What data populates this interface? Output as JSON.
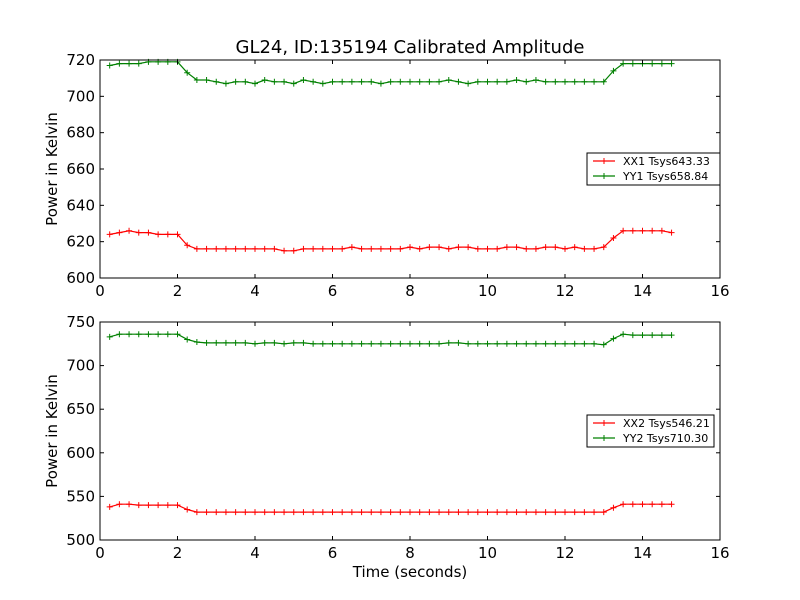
{
  "title": "GL24, ID:135194 Calibrated Amplitude",
  "chart_data": [
    {
      "type": "line",
      "ylabel": "Power in Kelvin",
      "xlabel": "",
      "xlim": [
        0,
        16
      ],
      "ylim": [
        600,
        720
      ],
      "xticks": [
        0,
        2,
        4,
        6,
        8,
        10,
        12,
        14,
        16
      ],
      "yticks": [
        600,
        620,
        640,
        660,
        680,
        700,
        720
      ],
      "grid": false,
      "legend_position": "center-right",
      "x": [
        0.25,
        0.5,
        0.75,
        1.0,
        1.25,
        1.5,
        1.75,
        2.0,
        2.25,
        2.5,
        2.75,
        3.0,
        3.25,
        3.5,
        3.75,
        4.0,
        4.25,
        4.5,
        4.75,
        5.0,
        5.25,
        5.5,
        5.75,
        6.0,
        6.25,
        6.5,
        6.75,
        7.0,
        7.25,
        7.5,
        7.75,
        8.0,
        8.25,
        8.5,
        8.75,
        9.0,
        9.25,
        9.5,
        9.75,
        10.0,
        10.25,
        10.5,
        10.75,
        11.0,
        11.25,
        11.5,
        11.75,
        12.0,
        12.25,
        12.5,
        12.75,
        13.0,
        13.25,
        13.5,
        13.75,
        14.0,
        14.25,
        14.5,
        14.75
      ],
      "series": [
        {
          "name": "XX1 Tsys643.33",
          "color": "#ff0000",
          "values": [
            624,
            625,
            626,
            625,
            625,
            624,
            624,
            624,
            618,
            616,
            616,
            616,
            616,
            616,
            616,
            616,
            616,
            616,
            615,
            615,
            616,
            616,
            616,
            616,
            616,
            617,
            616,
            616,
            616,
            616,
            616,
            617,
            616,
            617,
            617,
            616,
            617,
            617,
            616,
            616,
            616,
            617,
            617,
            616,
            616,
            617,
            617,
            616,
            617,
            616,
            616,
            617,
            622,
            626,
            626,
            626,
            626,
            626,
            625
          ]
        },
        {
          "name": "YY1 Tsys658.84",
          "color": "#008000",
          "values": [
            717,
            718,
            718,
            718,
            719,
            719,
            719,
            719,
            713,
            709,
            709,
            708,
            707,
            708,
            708,
            707,
            709,
            708,
            708,
            707,
            709,
            708,
            707,
            708,
            708,
            708,
            708,
            708,
            707,
            708,
            708,
            708,
            708,
            708,
            708,
            709,
            708,
            707,
            708,
            708,
            708,
            708,
            709,
            708,
            709,
            708,
            708,
            708,
            708,
            708,
            708,
            708,
            714,
            718,
            718,
            718,
            718,
            718,
            718
          ]
        }
      ]
    },
    {
      "type": "line",
      "ylabel": "Power in Kelvin",
      "xlabel": "Time (seconds)",
      "xlim": [
        0,
        16
      ],
      "ylim": [
        500,
        750
      ],
      "xticks": [
        0,
        2,
        4,
        6,
        8,
        10,
        12,
        14,
        16
      ],
      "yticks": [
        500,
        550,
        600,
        650,
        700,
        750
      ],
      "grid": false,
      "legend_position": "center-right",
      "x": [
        0.25,
        0.5,
        0.75,
        1.0,
        1.25,
        1.5,
        1.75,
        2.0,
        2.25,
        2.5,
        2.75,
        3.0,
        3.25,
        3.5,
        3.75,
        4.0,
        4.25,
        4.5,
        4.75,
        5.0,
        5.25,
        5.5,
        5.75,
        6.0,
        6.25,
        6.5,
        6.75,
        7.0,
        7.25,
        7.5,
        7.75,
        8.0,
        8.25,
        8.5,
        8.75,
        9.0,
        9.25,
        9.5,
        9.75,
        10.0,
        10.25,
        10.5,
        10.75,
        11.0,
        11.25,
        11.5,
        11.75,
        12.0,
        12.25,
        12.5,
        12.75,
        13.0,
        13.25,
        13.5,
        13.75,
        14.0,
        14.25,
        14.5,
        14.75
      ],
      "series": [
        {
          "name": "XX2 Tsys546.21",
          "color": "#ff0000",
          "values": [
            538,
            541,
            541,
            540,
            540,
            540,
            540,
            540,
            535,
            532,
            532,
            532,
            532,
            532,
            532,
            532,
            532,
            532,
            532,
            532,
            532,
            532,
            532,
            532,
            532,
            532,
            532,
            532,
            532,
            532,
            532,
            532,
            532,
            532,
            532,
            532,
            532,
            532,
            532,
            532,
            532,
            532,
            532,
            532,
            532,
            532,
            532,
            532,
            532,
            532,
            532,
            532,
            537,
            541,
            541,
            541,
            541,
            541,
            541
          ]
        },
        {
          "name": "YY2 Tsys710.30",
          "color": "#008000",
          "values": [
            733,
            736,
            736,
            736,
            736,
            736,
            736,
            736,
            730,
            727,
            726,
            726,
            726,
            726,
            726,
            725,
            726,
            726,
            725,
            726,
            726,
            725,
            725,
            725,
            725,
            725,
            725,
            725,
            725,
            725,
            725,
            725,
            725,
            725,
            725,
            726,
            726,
            725,
            725,
            725,
            725,
            725,
            725,
            725,
            725,
            725,
            725,
            725,
            725,
            725,
            725,
            724,
            731,
            736,
            735,
            735,
            735,
            735,
            735
          ]
        }
      ]
    }
  ]
}
